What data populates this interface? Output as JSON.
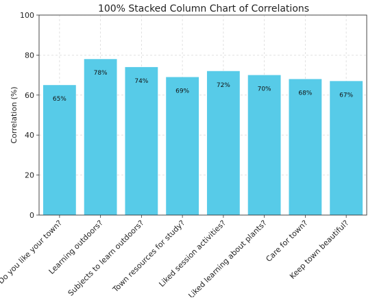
{
  "chart_data": {
    "type": "bar",
    "title": "100% Stacked Column Chart of Correlations",
    "xlabel": "",
    "ylabel": "Correlation (%)",
    "ylim": [
      0,
      100
    ],
    "yticks": [
      0,
      20,
      40,
      60,
      80,
      100
    ],
    "grid": true,
    "categories": [
      "Do you like your town?",
      "Learning outdoors?",
      "Subjects to learn outdoors?",
      "Town resources for study?",
      "Liked session activities?",
      "Liked learning about plants?",
      "Care for town?",
      "Keep town beautiful?"
    ],
    "values": [
      65,
      78,
      74,
      69,
      72,
      70,
      68,
      67
    ],
    "data_labels": [
      "65%",
      "78%",
      "74%",
      "69%",
      "72%",
      "70%",
      "68%",
      "67%"
    ],
    "bar_color": "#57cbe8"
  }
}
